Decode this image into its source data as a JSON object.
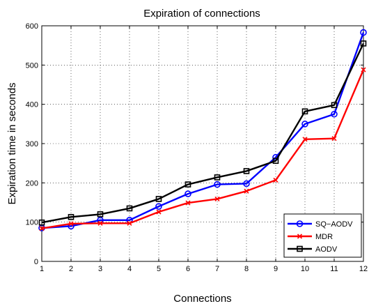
{
  "chart_data": {
    "type": "line",
    "title": "Expiration of connections",
    "xlabel": "Connections",
    "ylabel": "Expiration time in seconds",
    "x": [
      1,
      2,
      3,
      4,
      5,
      6,
      7,
      8,
      9,
      10,
      11,
      12
    ],
    "xlim": [
      1,
      12
    ],
    "ylim": [
      0,
      600
    ],
    "yticks": [
      0,
      100,
      200,
      300,
      400,
      500,
      600
    ],
    "grid": true,
    "legend_position": "bottom-right",
    "series": [
      {
        "name": "SQ−AODV",
        "color": "#0000ff",
        "marker": "circle",
        "values": [
          85,
          90,
          105,
          105,
          140,
          172,
          196,
          198,
          265,
          350,
          375,
          583
        ]
      },
      {
        "name": "MDR",
        "color": "#ff0000",
        "marker": "x",
        "values": [
          84,
          96,
          97,
          97,
          126,
          149,
          159,
          179,
          207,
          311,
          313,
          488
        ]
      },
      {
        "name": "AODV",
        "color": "#000000",
        "marker": "square",
        "values": [
          99,
          113,
          120,
          135,
          159,
          196,
          214,
          230,
          256,
          382,
          398,
          555
        ]
      }
    ]
  }
}
